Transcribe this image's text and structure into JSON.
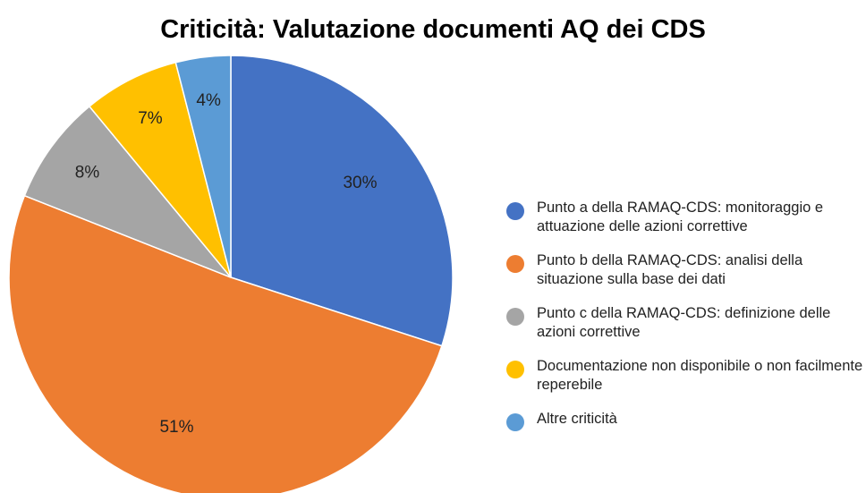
{
  "chart_data": {
    "type": "pie",
    "title": "Criticità: Valutazione documenti AQ dei CDS",
    "categories": [
      "Punto a della RAMAQ-CDS: monitoraggio e attuazione delle azioni correttive",
      "Punto b della RAMAQ-CDS: analisi della situazione sulla base dei dati",
      "Punto c della RAMAQ-CDS: definizione delle azioni correttive",
      "Documentazione non disponibile o non facilmente reperebile",
      "Altre criticità"
    ],
    "values": [
      30,
      51,
      8,
      7,
      4
    ],
    "value_labels": [
      "30%",
      "51%",
      "8%",
      "7%",
      "4%"
    ],
    "colors": [
      "#4472c4",
      "#ed7d31",
      "#a5a5a5",
      "#ffc000",
      "#5b9bd5"
    ],
    "legend": "right"
  }
}
